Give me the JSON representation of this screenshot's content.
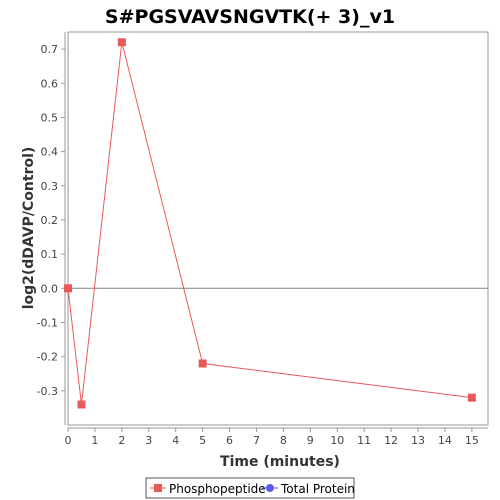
{
  "chart_data": {
    "type": "line",
    "title": "S#PGSVAVSNGVTK(+ 3)_v1",
    "xlabel": "Time (minutes)",
    "ylabel": "log2(dDAVP/Control)",
    "xlim": [
      0,
      15.6
    ],
    "ylim": [
      -0.4,
      0.75
    ],
    "x_ticks": [
      0,
      1,
      2,
      3,
      4,
      5,
      6,
      7,
      8,
      9,
      10,
      11,
      12,
      13,
      14,
      15
    ],
    "y_ticks": [
      -0.3,
      -0.2,
      -0.1,
      0.0,
      0.1,
      0.2,
      0.3,
      0.4,
      0.5,
      0.6,
      0.7
    ],
    "y_tick_labels": [
      "-0.3",
      "-0.2",
      "-0.1",
      "0.0",
      "0.1",
      "0.2",
      "0.3",
      "0.4",
      "0.5",
      "0.6",
      "0.7"
    ],
    "grid": false,
    "zero_line": true,
    "legend_position": "bottom",
    "series": [
      {
        "name": "Phosphopeptide",
        "color": "#e85a5a",
        "marker": "square",
        "x": [
          0,
          0.5,
          2,
          5,
          15
        ],
        "y": [
          0.0,
          -0.34,
          0.72,
          -0.22,
          -0.32
        ]
      },
      {
        "name": "Total Protein",
        "color": "#5b5bef",
        "marker": "circle",
        "x": [],
        "y": []
      }
    ]
  }
}
